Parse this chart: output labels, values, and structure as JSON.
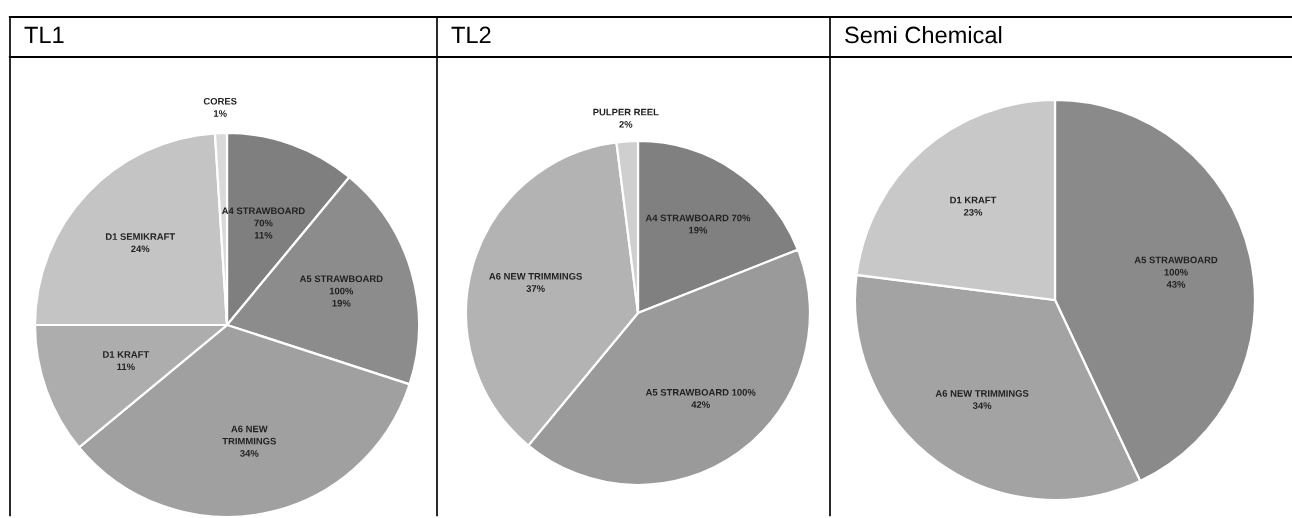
{
  "chart_data": [
    {
      "type": "pie",
      "title": "TL1",
      "categories": [
        "A4 STRAWBOARD\n70%",
        "A5 STRAWBOARD\n100%",
        "A6 NEW\nTRIMMINGS",
        "D1 KRAFT",
        "D1 SEMIKRAFT",
        "CORES"
      ],
      "values": [
        11,
        19,
        34,
        11,
        24,
        1
      ],
      "value_labels": [
        "11%",
        "19%",
        "34%",
        "11%",
        "24%",
        "1%"
      ],
      "colors": [
        "#7f7f7f",
        "#8c8c8c",
        "#a0a0a0",
        "#adadad",
        "#c4c4c4",
        "#d9d9d9"
      ]
    },
    {
      "type": "pie",
      "title": "TL2",
      "categories": [
        "A4 STRAWBOARD 70%",
        "A5 STRAWBOARD 100%",
        "A6 NEW TRIMMINGS",
        "PULPER REEL"
      ],
      "values": [
        19,
        42,
        37,
        2
      ],
      "value_labels": [
        "19%",
        "42%",
        "37%",
        "2%"
      ],
      "colors": [
        "#808080",
        "#9a9a9a",
        "#b3b3b3",
        "#cfcfcf"
      ]
    },
    {
      "type": "pie",
      "title": "Semi Chemical",
      "categories": [
        "A5 STRAWBOARD\n100%",
        "A6 NEW TRIMMINGS",
        "D1 KRAFT"
      ],
      "values": [
        43,
        34,
        23
      ],
      "value_labels": [
        "43%",
        "34%",
        "23%"
      ],
      "colors": [
        "#8a8a8a",
        "#a3a3a3",
        "#c8c8c8"
      ]
    }
  ]
}
